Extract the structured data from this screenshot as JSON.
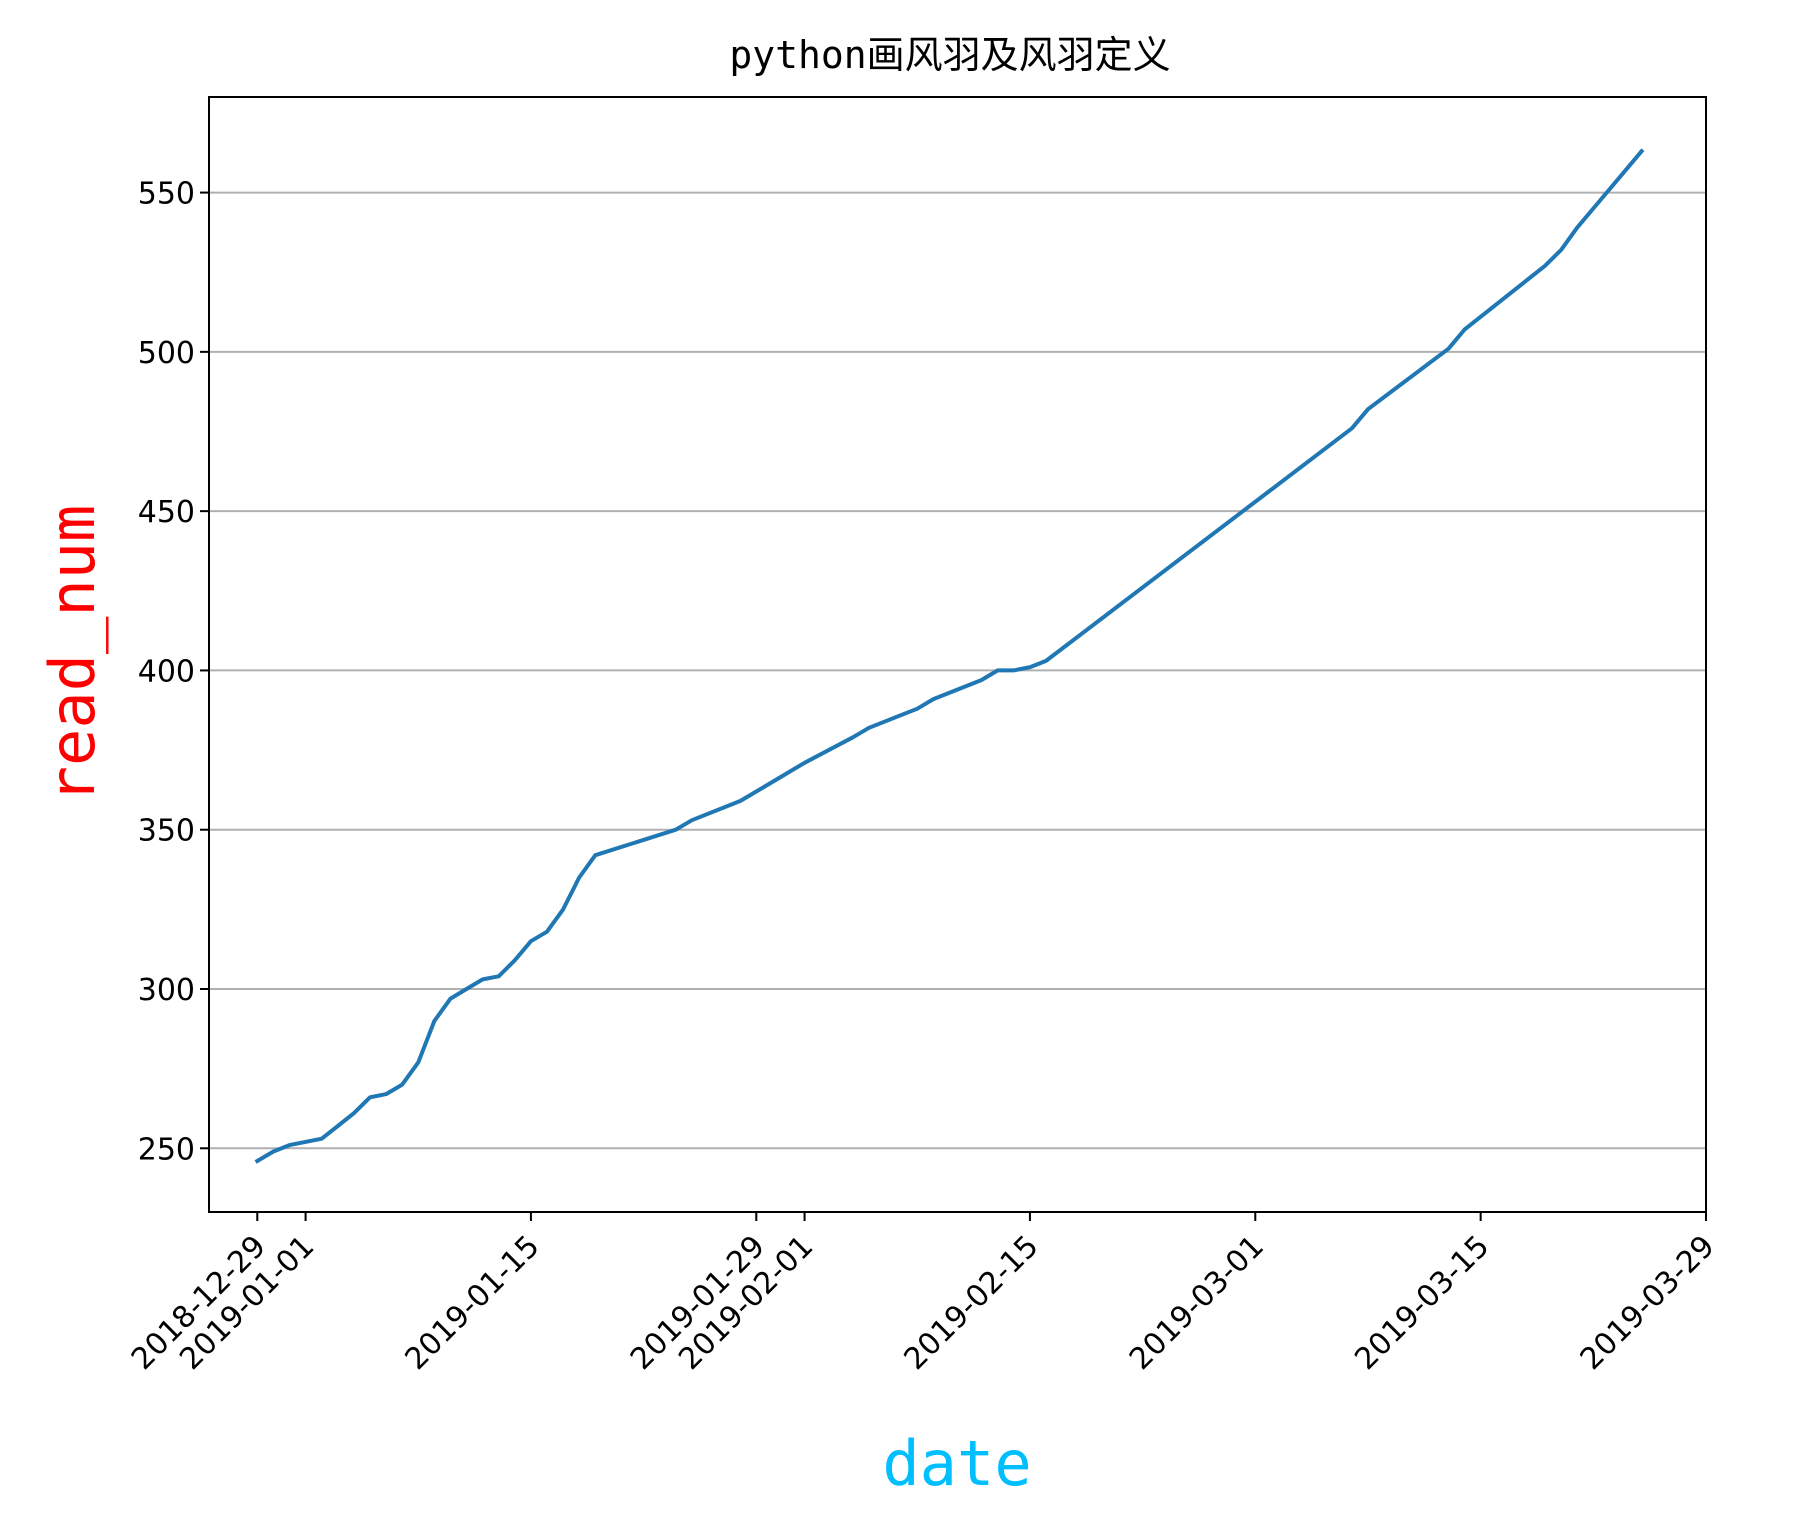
{
  "chart_data": {
    "type": "line",
    "title": "python画风羽及风羽定义",
    "xlabel": "date",
    "ylabel": "read_num",
    "xlabel_color": "#00bfff",
    "ylabel_color": "#ff0000",
    "line_color": "#1f77b4",
    "grid": "horizontal",
    "xlim": [
      "2018-12-26",
      "2019-03-29"
    ],
    "ylim": [
      230,
      580
    ],
    "x_ticks": [
      "2018-12-29",
      "2019-01-01",
      "2019-01-15",
      "2019-01-29",
      "2019-02-01",
      "2019-02-15",
      "2019-03-01",
      "2019-03-15",
      "2019-03-29"
    ],
    "y_ticks": [
      250,
      300,
      350,
      400,
      450,
      500,
      550
    ],
    "series": [
      {
        "x": [
          "2018-12-29",
          "2018-12-30",
          "2018-12-31",
          "2019-01-02",
          "2019-01-03",
          "2019-01-04",
          "2019-01-05",
          "2019-01-06",
          "2019-01-07",
          "2019-01-08",
          "2019-01-09",
          "2019-01-10",
          "2019-01-11",
          "2019-01-12",
          "2019-01-13",
          "2019-01-14",
          "2019-01-15",
          "2019-01-16",
          "2019-01-17",
          "2019-01-18",
          "2019-01-19",
          "2019-01-24",
          "2019-01-25",
          "2019-01-28",
          "2019-01-29",
          "2019-01-31",
          "2019-02-01",
          "2019-02-04",
          "2019-02-05",
          "2019-02-08",
          "2019-02-09",
          "2019-02-12",
          "2019-02-13",
          "2019-02-14",
          "2019-02-15",
          "2019-02-16",
          "2019-03-07",
          "2019-03-08",
          "2019-03-13",
          "2019-03-14",
          "2019-03-19",
          "2019-03-20",
          "2019-03-21",
          "2019-03-22",
          "2019-03-25"
        ],
        "values": [
          246,
          249,
          251,
          253,
          257,
          261,
          266,
          267,
          270,
          277,
          290,
          297,
          300,
          303,
          304,
          309,
          315,
          318,
          325,
          335,
          342,
          350,
          353,
          359,
          362,
          368,
          371,
          379,
          382,
          388,
          391,
          397,
          400,
          400,
          401,
          403,
          476,
          482,
          501,
          507,
          527,
          532,
          539,
          545,
          563
        ]
      }
    ]
  }
}
